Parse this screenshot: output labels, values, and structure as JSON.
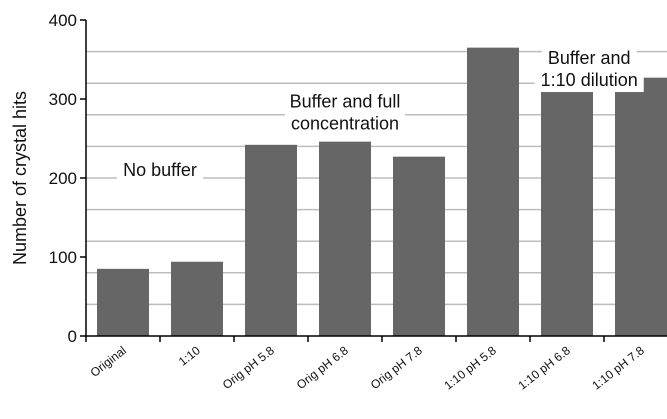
{
  "chart_data": {
    "type": "bar",
    "title": "",
    "xlabel": "",
    "ylabel": "Number of crystal hits",
    "ylim": [
      0,
      400
    ],
    "yticks": [
      0,
      100,
      200,
      300,
      400
    ],
    "grid_values": [
      40,
      80,
      120,
      160,
      200,
      240,
      280,
      320,
      360
    ],
    "grid": true,
    "legend": "none",
    "categories": [
      "Original",
      "1:10",
      "Orig pH 5.8",
      "Orig pH 6.8",
      "Orig pH 7.8",
      "1:10 pH 5.8",
      "1:10 pH 6.8",
      "1:10 pH 7.8"
    ],
    "values": [
      85,
      94,
      242,
      246,
      227,
      365,
      312,
      327
    ],
    "bar_color": "#666666",
    "grid_color": "#bdbdbd",
    "annotations": [
      {
        "lines": [
          "No buffer"
        ],
        "value": 220,
        "after_category": 0.5
      },
      {
        "lines": [
          "Buffer and full",
          "concentration"
        ],
        "value": 307,
        "after_category": 3
      },
      {
        "lines": [
          "Buffer and",
          "1:10 dilution"
        ],
        "value": 362,
        "after_category": 6.3
      }
    ]
  }
}
